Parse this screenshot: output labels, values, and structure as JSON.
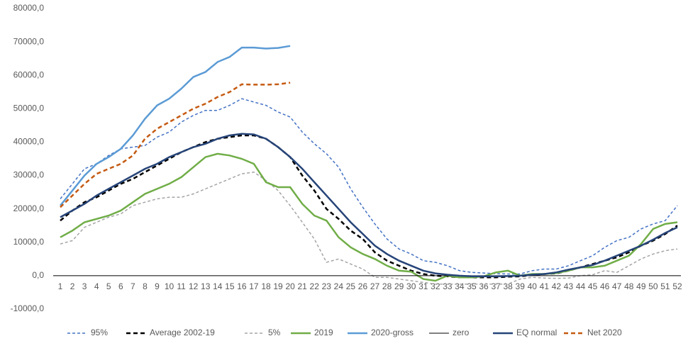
{
  "chart_data": {
    "type": "line",
    "categories": [
      "1",
      "2",
      "3",
      "4",
      "5",
      "6",
      "7",
      "8",
      "9",
      "10",
      "11",
      "12",
      "13",
      "14",
      "15",
      "16",
      "17",
      "18",
      "19",
      "20",
      "21",
      "22",
      "23",
      "24",
      "25",
      "26",
      "27",
      "28",
      "29",
      "30",
      "31",
      "32",
      "33",
      "34",
      "35",
      "36",
      "37",
      "38",
      "39",
      "40",
      "41",
      "42",
      "43",
      "44",
      "45",
      "46",
      "47",
      "48",
      "49",
      "50",
      "51",
      "52"
    ],
    "ylim": [
      -10000,
      80000
    ],
    "yticks": [
      {
        "value": -10000,
        "label": "-10000,0"
      },
      {
        "value": 0,
        "label": "0,0"
      },
      {
        "value": 10000,
        "label": "10000,0"
      },
      {
        "value": 20000,
        "label": "20000,0"
      },
      {
        "value": 30000,
        "label": "30000,0"
      },
      {
        "value": 40000,
        "label": "40000,0"
      },
      {
        "value": 50000,
        "label": "50000,0"
      },
      {
        "value": 60000,
        "label": "60000,0"
      },
      {
        "value": 70000,
        "label": "70000,0"
      },
      {
        "value": 80000,
        "label": "80000,0"
      }
    ],
    "legend": "bottom",
    "series": [
      {
        "name": "95%",
        "color": "#4472c4",
        "style": "dashed",
        "values": [
          23000,
          27500,
          32000,
          33500,
          36000,
          38000,
          38500,
          39000,
          41500,
          43000,
          46000,
          48000,
          49500,
          49500,
          51000,
          53000,
          52000,
          51000,
          49000,
          47500,
          43000,
          39500,
          36500,
          32500,
          26000,
          20500,
          15500,
          11000,
          8000,
          6500,
          4500,
          4000,
          3000,
          1500,
          1000,
          800,
          600,
          500,
          500,
          1500,
          2000,
          2000,
          3000,
          4500,
          6000,
          8500,
          10500,
          11500,
          14000,
          15500,
          16500,
          21000
        ]
      },
      {
        "name": "Average 2002-19",
        "color": "#000000",
        "style": "dashed",
        "values": [
          16500,
          19500,
          22000,
          23500,
          25500,
          27500,
          29000,
          31000,
          33000,
          35000,
          37000,
          38500,
          40000,
          41000,
          41500,
          42000,
          42000,
          41000,
          38500,
          35500,
          30000,
          25500,
          20000,
          17000,
          13500,
          11000,
          7000,
          4500,
          3000,
          1500,
          500,
          0,
          -200,
          -500,
          -500,
          -500,
          -500,
          -300,
          -200,
          200,
          500,
          700,
          1500,
          2500,
          3500,
          4500,
          5500,
          7000,
          9000,
          10500,
          12500,
          15000
        ]
      },
      {
        "name": "5%",
        "color": "#a5a5a5",
        "style": "dashed",
        "values": [
          9500,
          10500,
          14500,
          16000,
          17500,
          18500,
          21000,
          22000,
          23000,
          23500,
          23500,
          24500,
          26000,
          27500,
          29000,
          30500,
          31000,
          28500,
          25500,
          21000,
          16000,
          11000,
          4000,
          5000,
          3500,
          2000,
          -500,
          -500,
          -1000,
          -1500,
          -2000,
          -2500,
          -2500,
          -2500,
          -2500,
          -2500,
          -2500,
          -2500,
          -1000,
          -500,
          -700,
          -800,
          -700,
          0,
          300,
          1500,
          1000,
          3000,
          5000,
          6500,
          7500,
          8000
        ]
      },
      {
        "name": "2019",
        "color": "#70ad47",
        "style": "solid",
        "values": [
          11500,
          13500,
          16000,
          17000,
          18000,
          19500,
          22000,
          24500,
          26000,
          27500,
          29500,
          32500,
          35500,
          36500,
          36000,
          35000,
          33500,
          28000,
          26500,
          26500,
          21500,
          18000,
          16500,
          11500,
          8500,
          6500,
          5000,
          3000,
          1500,
          1200,
          -1000,
          -1500,
          0,
          -500,
          -500,
          -200,
          1000,
          1500,
          0,
          500,
          500,
          800,
          1500,
          2500,
          2500,
          3000,
          4500,
          6000,
          9500,
          14000,
          15500,
          16000
        ]
      },
      {
        "name": "2020-gross",
        "color": "#5b9bd5",
        "style": "solid",
        "values": [
          21000,
          25500,
          30000,
          33500,
          35500,
          38000,
          42000,
          47000,
          51000,
          53000,
          56000,
          59500,
          61000,
          64000,
          65500,
          68300,
          68300,
          68000,
          68200,
          68800,
          null,
          null,
          null,
          null,
          null,
          null,
          null,
          null,
          null,
          null,
          null,
          null,
          null,
          null,
          null,
          null,
          null,
          null,
          null,
          null,
          null,
          null,
          null,
          null,
          null,
          null,
          null,
          null,
          null,
          null,
          null,
          null
        ]
      },
      {
        "name": "zero",
        "color": "#000000",
        "style": "solid",
        "values": [
          0,
          0,
          0,
          0,
          0,
          0,
          0,
          0,
          0,
          0,
          0,
          0,
          0,
          0,
          0,
          0,
          0,
          0,
          0,
          0,
          0,
          0,
          0,
          0,
          0,
          0,
          0,
          0,
          0,
          0,
          0,
          0,
          0,
          0,
          0,
          0,
          0,
          0,
          0,
          0,
          0,
          0,
          0,
          0,
          0,
          0,
          0,
          0,
          0,
          0,
          0,
          0
        ]
      },
      {
        "name": "EQ normal",
        "color": "#264478",
        "style": "solid",
        "values": [
          17500,
          19500,
          21500,
          24000,
          26000,
          28000,
          30000,
          32000,
          33500,
          35500,
          37000,
          38500,
          39500,
          41000,
          42000,
          42500,
          42300,
          41000,
          38500,
          35500,
          32000,
          28000,
          24000,
          20000,
          16000,
          12500,
          9000,
          6500,
          4500,
          3000,
          1500,
          700,
          300,
          0,
          -200,
          -200,
          -200,
          -100,
          0,
          300,
          500,
          1000,
          1800,
          2500,
          3200,
          4500,
          6000,
          7500,
          9000,
          10800,
          12800,
          14500
        ]
      },
      {
        "name": "Net 2020",
        "color": "#c55a11",
        "style": "dashed",
        "values": [
          20500,
          24000,
          27500,
          30500,
          32000,
          33500,
          36000,
          41000,
          44000,
          46000,
          48000,
          50000,
          51500,
          53500,
          55000,
          57300,
          57200,
          57200,
          57300,
          57800,
          null,
          null,
          null,
          null,
          null,
          null,
          null,
          null,
          null,
          null,
          null,
          null,
          null,
          null,
          null,
          null,
          null,
          null,
          null,
          null,
          null,
          null,
          null,
          null,
          null,
          null,
          null,
          null,
          null,
          null,
          null,
          null
        ]
      }
    ]
  }
}
